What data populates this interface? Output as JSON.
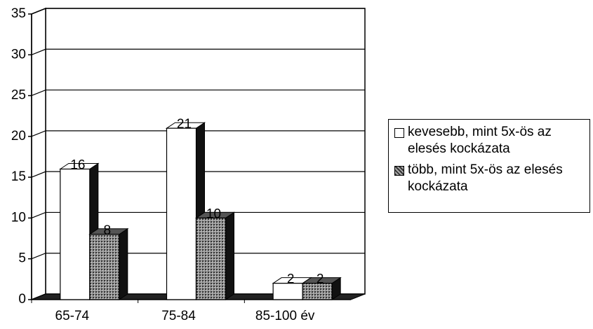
{
  "chart_data": {
    "type": "bar3d",
    "categories": [
      "65-74",
      "75-84",
      "85-100 év"
    ],
    "series": [
      {
        "name": "kevesebb, mint 5x-ös az elesés kockázata",
        "color": "#ffffff",
        "values": [
          16,
          21,
          2
        ]
      },
      {
        "name": "több, mint 5x-ös az elesés kockázata",
        "color": "#888888",
        "values": [
          8,
          10,
          2
        ]
      }
    ],
    "ylim": [
      0,
      35
    ],
    "yticks": [
      0,
      5,
      10,
      15,
      20,
      25,
      30,
      35
    ],
    "grid": true,
    "legend": "right"
  }
}
